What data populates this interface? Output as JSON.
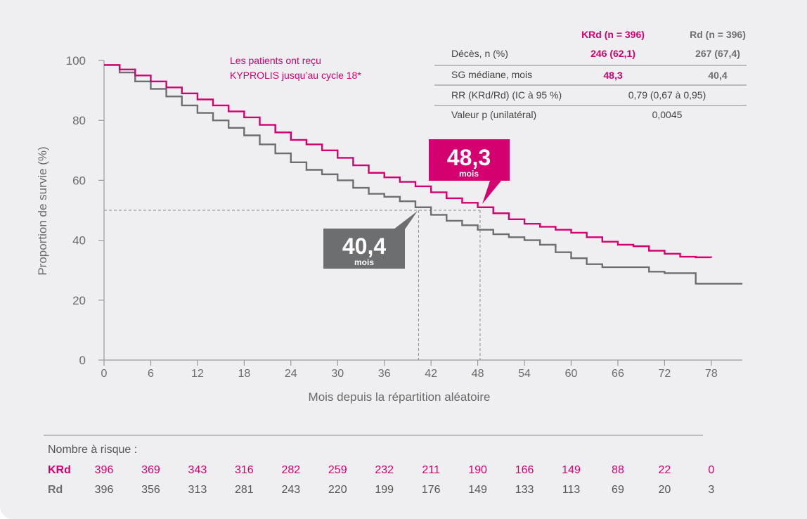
{
  "colors": {
    "krd": "#d4006f",
    "rd": "#6d6e70",
    "axis": "#9a9a9a",
    "text": "#555555",
    "callout_krd": "#d4006f",
    "callout_rd": "#6d6e70"
  },
  "annotation": {
    "line1": "Les patients ont reçu",
    "line2": "KYPROLIS jusqu’au cycle 18*"
  },
  "callouts": {
    "krd": {
      "value": "48,3",
      "unit": "mois"
    },
    "rd": {
      "value": "40,4",
      "unit": "mois"
    }
  },
  "stats_table": {
    "headers": {
      "krd": "KRd (n = 396)",
      "rd": "Rd (n = 396)"
    },
    "rows": [
      {
        "label": "Décès, n (%)",
        "krd": "246 (62,1)",
        "rd": "267 (67,4)"
      },
      {
        "label": "SG médiane, mois",
        "krd": "48,3",
        "rd": "40,4"
      },
      {
        "label": "RR (KRd/Rd) (IC à 95 %)",
        "combined": "0,79 (0,67 à 0,95)"
      },
      {
        "label": "Valeur p (unilatéral)",
        "combined": "0,0045"
      }
    ]
  },
  "risk_table": {
    "title": "Nombre à risque :",
    "rows": [
      {
        "label": "KRd",
        "values": [
          "396",
          "369",
          "343",
          "316",
          "282",
          "259",
          "232",
          "211",
          "190",
          "166",
          "149",
          "88",
          "22",
          "0"
        ]
      },
      {
        "label": "Rd",
        "values": [
          "396",
          "356",
          "313",
          "281",
          "243",
          "220",
          "199",
          "176",
          "149",
          "133",
          "113",
          "69",
          "20",
          "3"
        ]
      }
    ]
  },
  "chart_data": {
    "type": "line",
    "title": "",
    "xlabel": "Mois depuis la répartition aléatoire",
    "ylabel": "Proportion de survie (%)",
    "xlim": [
      0,
      82
    ],
    "ylim": [
      0,
      100
    ],
    "xticks": [
      0,
      6,
      12,
      18,
      24,
      30,
      36,
      42,
      48,
      54,
      60,
      66,
      72,
      78
    ],
    "yticks": [
      0,
      20,
      40,
      60,
      80,
      100
    ],
    "grid": false,
    "reference_lines": {
      "y": 50,
      "x_krd": 48.3,
      "x_rd": 40.4
    },
    "series": [
      {
        "name": "KRd",
        "color": "#d4006f",
        "x": [
          0,
          2,
          4,
          6,
          8,
          10,
          12,
          14,
          16,
          18,
          20,
          22,
          24,
          26,
          28,
          30,
          32,
          34,
          36,
          38,
          40,
          42,
          44,
          46,
          48,
          50,
          52,
          54,
          56,
          58,
          60,
          62,
          64,
          66,
          68,
          70,
          72,
          74,
          76,
          78
        ],
        "y": [
          98.5,
          97,
          95,
          93,
          91,
          89,
          87,
          85,
          83,
          81,
          78.5,
          76,
          73.5,
          72,
          70,
          67.5,
          65,
          62.5,
          61,
          59.5,
          58,
          56,
          54,
          52.5,
          51,
          49,
          47,
          45.5,
          44.5,
          43.5,
          42.5,
          41,
          39.5,
          38.5,
          38,
          36.5,
          35.5,
          34.5,
          34.3,
          34.2
        ]
      },
      {
        "name": "Rd",
        "color": "#6d6e70",
        "x": [
          0,
          2,
          4,
          6,
          8,
          10,
          12,
          14,
          16,
          18,
          20,
          22,
          24,
          26,
          28,
          30,
          32,
          34,
          36,
          38,
          40,
          42,
          44,
          46,
          48,
          50,
          52,
          54,
          56,
          58,
          60,
          62,
          64,
          66,
          68,
          70,
          72,
          74,
          76,
          78,
          80,
          82
        ],
        "y": [
          98.5,
          96,
          93,
          90.5,
          88,
          85,
          82.5,
          80,
          77.5,
          75,
          72,
          69,
          66,
          63.5,
          62,
          60,
          57.5,
          55.5,
          54.5,
          53,
          51,
          48.5,
          46.5,
          45,
          43.5,
          42,
          41,
          40,
          38.5,
          36,
          34,
          32,
          31,
          31,
          31,
          29.5,
          29,
          29,
          25.5,
          25.5,
          25.5,
          25.5
        ]
      }
    ]
  }
}
